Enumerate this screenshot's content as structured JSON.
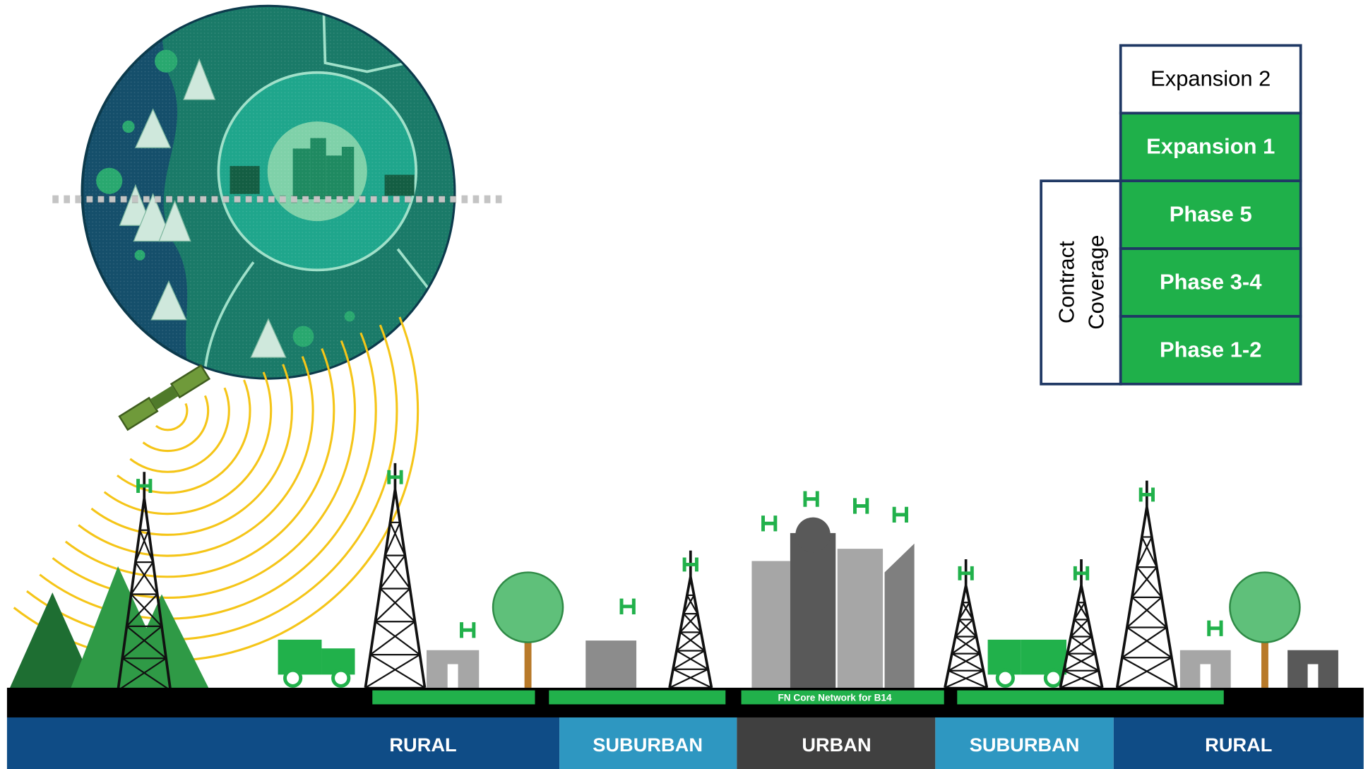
{
  "legend": {
    "items": [
      "Expansion 2",
      "Expansion 1",
      "Phase 5",
      "Phase 3-4",
      "Phase 1-2"
    ],
    "bracket_label": [
      "Contract",
      "Coverage"
    ]
  },
  "network_label": "FN Core Network for B14",
  "zones": [
    "RURAL",
    "SUBURBAN",
    "URBAN",
    "SUBURBAN",
    "RURAL"
  ]
}
